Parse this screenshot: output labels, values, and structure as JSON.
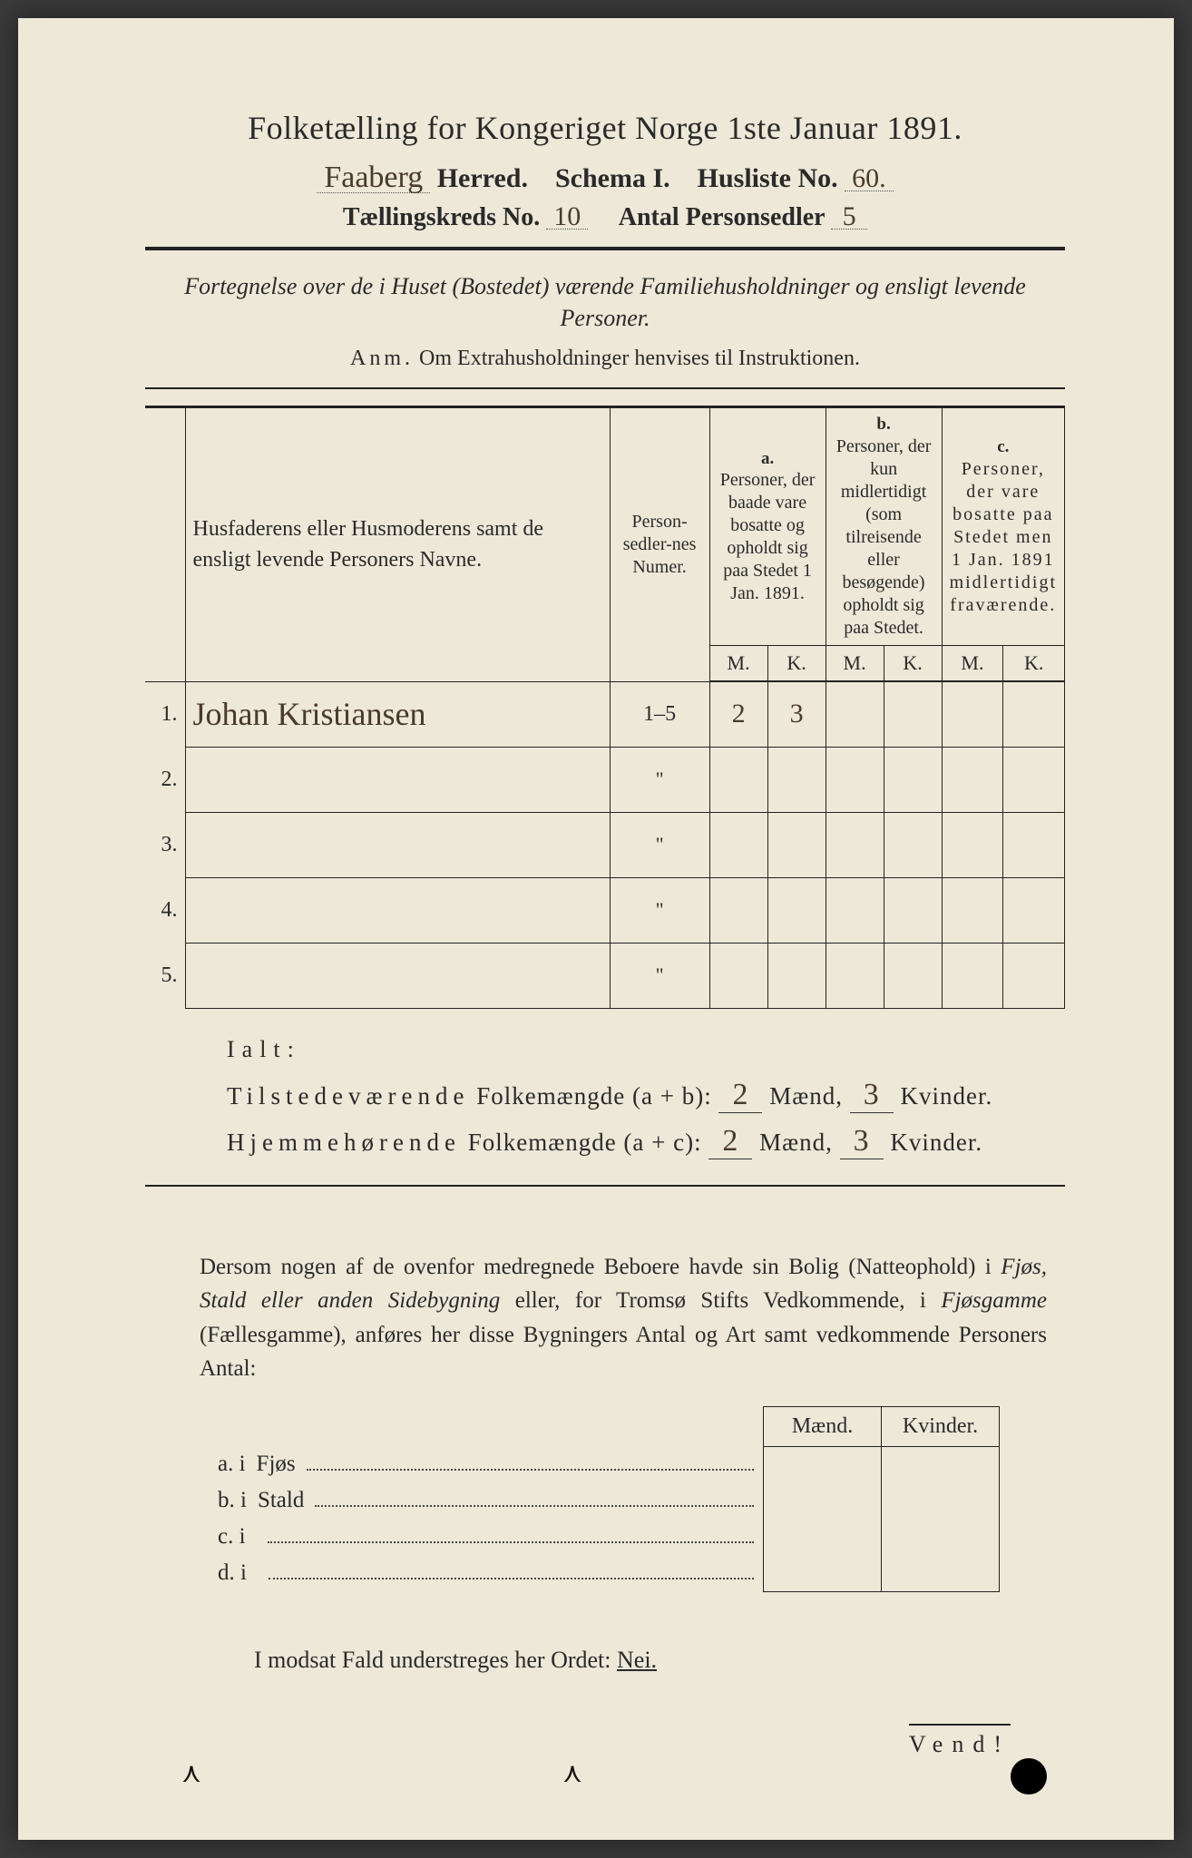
{
  "title": "Folketælling for Kongeriget Norge 1ste Januar 1891.",
  "header": {
    "herred_value": "Faaberg",
    "herred_label": "Herred.",
    "schema_label": "Schema I.",
    "husliste_label": "Husliste No.",
    "husliste_value": "60.",
    "kreds_label": "Tællingskreds No.",
    "kreds_value": "10",
    "antal_label": "Antal Personsedler",
    "antal_value": "5"
  },
  "description": "Fortegnelse over de i Huset (Bostedet) værende Familiehusholdninger og ensligt levende Personer.",
  "anm_label": "Anm.",
  "anm_text": "Om Extrahusholdninger henvises til Instruktionen.",
  "table": {
    "col_names": "Husfaderens eller Husmoderens samt de ensligt levende Personers Navne.",
    "col_numer": "Person-sedler-nes Numer.",
    "col_a_sup": "a.",
    "col_a": "Personer, der baade vare bosatte og opholdt sig paa Stedet 1 Jan. 1891.",
    "col_b_sup": "b.",
    "col_b": "Personer, der kun midlertidigt (som tilreisende eller besøgende) opholdt sig paa Stedet.",
    "col_c_sup": "c.",
    "col_c": "Personer, der vare bosatte paa Stedet men 1 Jan. 1891 midlertidigt fraværende.",
    "M": "M.",
    "K": "K.",
    "rows": [
      {
        "n": "1.",
        "name": "Johan Kristiansen",
        "numer": "1–5",
        "aM": "2",
        "aK": "3",
        "bM": "",
        "bK": "",
        "cM": "",
        "cK": ""
      },
      {
        "n": "2.",
        "name": "",
        "numer": "\"",
        "aM": "",
        "aK": "",
        "bM": "",
        "bK": "",
        "cM": "",
        "cK": ""
      },
      {
        "n": "3.",
        "name": "",
        "numer": "\"",
        "aM": "",
        "aK": "",
        "bM": "",
        "bK": "",
        "cM": "",
        "cK": ""
      },
      {
        "n": "4.",
        "name": "",
        "numer": "\"",
        "aM": "",
        "aK": "",
        "bM": "",
        "bK": "",
        "cM": "",
        "cK": ""
      },
      {
        "n": "5.",
        "name": "",
        "numer": "\"",
        "aM": "",
        "aK": "",
        "bM": "",
        "bK": "",
        "cM": "",
        "cK": ""
      }
    ]
  },
  "ialt": {
    "label": "Ialt:",
    "row1_label_a": "Tilstedeværende",
    "row1_label_b": "Folkemængde (a + b):",
    "row2_label_a": "Hjemmehørende",
    "row2_label_b": "Folkemængde (a + c):",
    "maend": "Mænd,",
    "kvinder": "Kvinder.",
    "r1_m": "2",
    "r1_k": "3",
    "r2_m": "2",
    "r2_k": "3"
  },
  "para": {
    "text1": "Dersom nogen af de ovenfor medregnede Beboere havde sin Bolig (Natteophold) i ",
    "it1": "Fjøs, Stald eller anden Sidebygning",
    "text2": " eller, for Tromsø Stifts Vedkommende, i ",
    "it2": "Fjøsgamme",
    "text3": " (Fællesgamme), anføres her disse Bygningers Antal og Art samt vedkommende Personers Antal:"
  },
  "mk": {
    "maend": "Mænd.",
    "kvinder": "Kvinder.",
    "rows": [
      {
        "l": "a.  i",
        "t": "Fjøs"
      },
      {
        "l": "b.  i",
        "t": "Stald"
      },
      {
        "l": "c.  i",
        "t": ""
      },
      {
        "l": "d.  i",
        "t": ""
      }
    ]
  },
  "modsat": {
    "text": "I modsat Fald understreges her Ordet: ",
    "nei": "Nei."
  },
  "vend": "Vend!",
  "colors": {
    "paper": "#ede8d8",
    "ink": "#2a2a2a",
    "handwriting": "#4a3a2a",
    "background": "#3a3a3a"
  },
  "fonts": {
    "print": "Georgia, Times New Roman, serif",
    "script": "Brush Script MT, cursive",
    "title_size_pt": 27,
    "body_size_pt": 19
  }
}
